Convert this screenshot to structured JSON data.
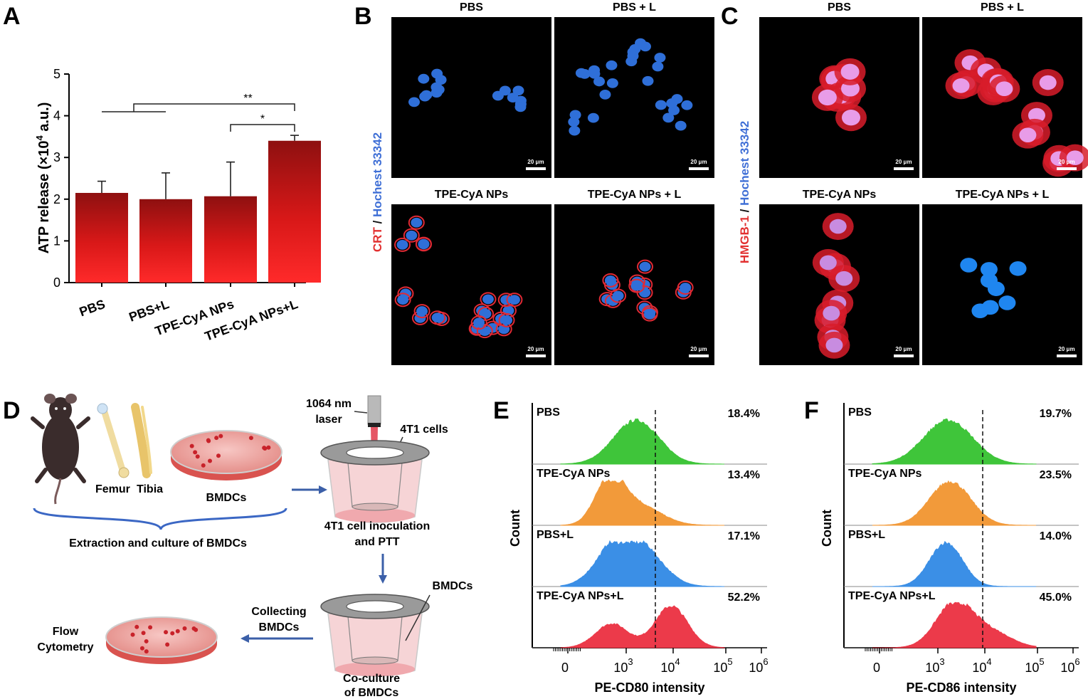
{
  "panels": {
    "A": "A",
    "B": "B",
    "C": "C",
    "D": "D",
    "E": "E",
    "F": "F"
  },
  "panel_a": {
    "ylabel_main": "ATP release (×10",
    "ylabel_sup": "4",
    "ylabel_tail": " a.u.)",
    "sig_double": "**",
    "sig_single": "*"
  },
  "panel_b": {
    "tiles": [
      "PBS",
      "PBS + L",
      "TPE-CyA NPs",
      "TPE-CyA NPs + L"
    ],
    "side_red": "CRT",
    "side_sep": " / ",
    "side_blue": "Hochest 33342",
    "scale": "20 μm"
  },
  "panel_c": {
    "tiles": [
      "PBS",
      "PBS + L",
      "TPE-CyA NPs",
      "TPE-CyA NPs + L"
    ],
    "side_red": "HMGB-1",
    "side_sep": " / ",
    "side_blue": "Hochest 33342",
    "scale": "20 μm"
  },
  "panel_d": {
    "femur": "Femur",
    "tibia": "Tibia",
    "bmdcs_top": "BMDCs",
    "extraction": "Extraction and culture of BMDCs",
    "laser_1": "1064 nm",
    "laser_2": "laser",
    "cells": "4T1 cells",
    "inoc_1": "4T1 cell inoculation",
    "inoc_2": "and PTT",
    "bmdcs_co": "BMDCs",
    "co_1": "Co-culture",
    "co_2": "of BMDCs",
    "collect_1": "Collecting",
    "collect_2": "BMDCs",
    "flow_1": "Flow",
    "flow_2": "Cytometry"
  },
  "panel_e": {
    "ylabel": "Count",
    "xlabel": "PE-CD80 intensity",
    "ticks": [
      "0",
      "10",
      "10",
      "10",
      "10"
    ],
    "exps": [
      "",
      "3",
      "4",
      "5",
      "6"
    ],
    "rows": [
      {
        "label": "PBS",
        "pct": "18.4%",
        "color": "#3fc53a"
      },
      {
        "label": "TPE-CyA NPs",
        "pct": "13.4%",
        "color": "#f29a3a"
      },
      {
        "label": "PBS+L",
        "pct": "17.1%",
        "color": "#3b8fe6"
      },
      {
        "label": "TPE-CyA NPs+L",
        "pct": "52.2%",
        "color": "#ec3a4a"
      }
    ]
  },
  "panel_f": {
    "ylabel": "Count",
    "xlabel": "PE-CD86 intensity",
    "ticks": [
      "0",
      "10",
      "10",
      "10",
      "10"
    ],
    "exps": [
      "",
      "3",
      "4",
      "5",
      "6"
    ],
    "rows": [
      {
        "label": "PBS",
        "pct": "19.7%",
        "color": "#3fc53a"
      },
      {
        "label": "TPE-CyA NPs",
        "pct": "23.5%",
        "color": "#f29a3a"
      },
      {
        "label": "PBS+L",
        "pct": "14.0%",
        "color": "#3b8fe6"
      },
      {
        "label": "TPE-CyA NPs+L",
        "pct": "45.0%",
        "color": "#ec3a4a"
      }
    ]
  },
  "chart_data": [
    {
      "type": "bar",
      "categories": [
        "PBS",
        "PBS+L",
        "TPE-CyA NPs",
        "TPE-CyA NPs+L"
      ],
      "values": [
        2.15,
        2.0,
        2.07,
        3.4
      ],
      "errors": [
        0.28,
        0.63,
        0.82,
        0.13
      ],
      "ylabel": "ATP release (×10^4 a.u.)",
      "ylim": [
        0,
        5
      ],
      "yticks": [
        0,
        1,
        2,
        3,
        4,
        5
      ],
      "significance": [
        {
          "from": [
            "PBS",
            "PBS+L"
          ],
          "to": "TPE-CyA NPs+L",
          "mark": "**"
        },
        {
          "from": [
            "TPE-CyA NPs"
          ],
          "to": "TPE-CyA NPs+L",
          "mark": "*"
        }
      ]
    },
    {
      "type": "area",
      "ylabel": "Count",
      "xlabel": "PE-CD80 intensity",
      "series": [
        {
          "name": "PBS",
          "positive_pct": 18.4
        },
        {
          "name": "TPE-CyA NPs",
          "positive_pct": 13.4
        },
        {
          "name": "PBS+L",
          "positive_pct": 17.1
        },
        {
          "name": "TPE-CyA NPs+L",
          "positive_pct": 52.2
        }
      ]
    },
    {
      "type": "area",
      "ylabel": "Count",
      "xlabel": "PE-CD86 intensity",
      "series": [
        {
          "name": "PBS",
          "positive_pct": 19.7
        },
        {
          "name": "TPE-CyA NPs",
          "positive_pct": 23.5
        },
        {
          "name": "PBS+L",
          "positive_pct": 14.0
        },
        {
          "name": "TPE-CyA NPs+L",
          "positive_pct": 45.0
        }
      ]
    }
  ]
}
